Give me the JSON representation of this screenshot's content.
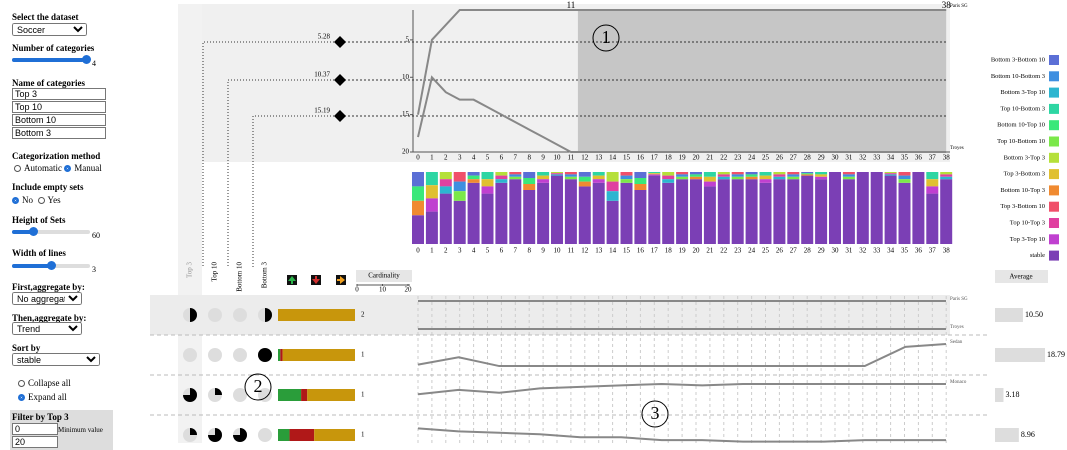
{
  "sidebar": {
    "dataset_label": "Select the dataset",
    "dataset": "Soccer",
    "categories_count_label": "Number of categories",
    "categories_count": 4,
    "names_label": "Name of categories",
    "names": [
      "Top 3",
      "Top 10",
      "Bottom 10",
      "Bottom 3"
    ],
    "method_label": "Categorization method",
    "method_options": [
      "Automatic",
      "Manual"
    ],
    "empty_label": "Include empty sets",
    "empty_options": [
      "No",
      "Yes"
    ],
    "height_label": "Height of Sets",
    "height": 60,
    "width_label": "Width of lines",
    "width": 3,
    "first_agg_label": "First,aggregate by:",
    "first_agg": "No aggregate",
    "then_agg_label": "Then,aggregate by:",
    "then_agg": "Trend",
    "sort_label": "Sort by",
    "sort": "stable",
    "expand_options": [
      "Collapse all",
      "Expand all"
    ],
    "filter_label": "Filter by Top 3",
    "filter_min": 0,
    "filter_min_label": "Minimum value",
    "filter_max": 20
  },
  "rank_chart": {
    "xticks": [
      0,
      1,
      2,
      3,
      4,
      5,
      6,
      7,
      8,
      9,
      10,
      11,
      12,
      13,
      14,
      15,
      16,
      17,
      18,
      19,
      20,
      21,
      22,
      23,
      24,
      25,
      26,
      27,
      28,
      29,
      30,
      31,
      32,
      33,
      34,
      35,
      36,
      37,
      38
    ],
    "ylim": [
      1,
      20
    ],
    "yticks": [
      5,
      10,
      15,
      20
    ],
    "thresholds": [
      5.28,
      10.37,
      15.19
    ],
    "marker_labels": [
      11,
      38
    ],
    "series": [
      {
        "name": "Paris SG",
        "values": [
          15,
          5,
          3,
          1,
          1,
          1,
          1,
          1,
          1,
          1,
          1,
          1,
          1,
          1,
          1,
          1,
          1,
          1,
          1,
          1,
          1,
          1,
          1,
          1,
          1,
          1,
          1,
          1,
          1,
          1,
          1,
          1,
          1,
          1,
          1,
          1,
          1,
          1,
          1
        ]
      },
      {
        "name": "Troyes",
        "values": [
          18,
          10,
          12,
          13,
          13,
          14,
          15,
          16,
          17,
          18,
          19,
          20,
          20,
          20,
          20,
          20,
          20,
          20,
          20,
          20,
          20,
          20,
          20,
          20,
          20,
          20,
          20,
          20,
          20,
          20,
          20,
          20,
          20,
          20,
          20,
          20,
          20,
          20,
          20
        ]
      }
    ],
    "stable_share": [
      40,
      45,
      70,
      60,
      85,
      70,
      85,
      90,
      75,
      85,
      95,
      90,
      80,
      85,
      60,
      85,
      75,
      95,
      85,
      90,
      90,
      80,
      90,
      90,
      90,
      85,
      90,
      90,
      95,
      90,
      100,
      90,
      100,
      100,
      95,
      85,
      100,
      70,
      90
    ]
  },
  "legend": [
    {
      "label": "Bottom 3-Bottom 10",
      "color": "#5b6fd6"
    },
    {
      "label": "Bottom 10-Bottom 3",
      "color": "#3f8fe0"
    },
    {
      "label": "Bottom 3-Top 10",
      "color": "#2cb5d0"
    },
    {
      "label": "Top 10-Bottom 3",
      "color": "#2dd6a3"
    },
    {
      "label": "Bottom 10-Top 10",
      "color": "#3ae87a"
    },
    {
      "label": "Top 10-Bottom 10",
      "color": "#7be84a"
    },
    {
      "label": "Bottom 3-Top 3",
      "color": "#b5e03a"
    },
    {
      "label": "Top 3-Bottom 3",
      "color": "#e0c030"
    },
    {
      "label": "Bottom 10-Top 3",
      "color": "#f08a30"
    },
    {
      "label": "Top 3-Bottom 10",
      "color": "#f0506a"
    },
    {
      "label": "Top 10-Top 3",
      "color": "#e040a0"
    },
    {
      "label": "Top 3-Top 10",
      "color": "#c040d0"
    },
    {
      "label": "stable",
      "color": "#7b3fb5"
    }
  ],
  "sets_table": {
    "cardinality_label": "Cardinality",
    "cardinality_ticks": [
      0,
      10,
      20
    ],
    "average_label": "Average",
    "columns": [
      "Top 3",
      "Top 10",
      "Bottom 10",
      "Bottom 3"
    ],
    "rows": [
      {
        "membership": [
          0.5,
          0,
          0,
          0.5
        ],
        "composition": [
          {
            "color": "#c8960c",
            "share": 100
          }
        ],
        "count": 2,
        "lines": [
          {
            "name": "Paris SG",
            "values": [
              1,
              1
            ]
          },
          {
            "name": "Troyes",
            "values": [
              20,
              20
            ]
          }
        ],
        "average": {
          "value": 10.5,
          "label": "10.50"
        }
      },
      {
        "membership": [
          0,
          0,
          0,
          1
        ],
        "composition": [
          {
            "color": "#2a9d3a",
            "share": 3
          },
          {
            "color": "#b01818",
            "share": 3
          },
          {
            "color": "#c8960c",
            "share": 94
          }
        ],
        "count": 1,
        "lines": [
          {
            "name": "Sedan",
            "values": [
              17,
              12,
              18,
              18,
              18,
              18,
              18,
              18,
              18,
              18,
              18,
              18,
              5,
              3
            ]
          }
        ],
        "average": {
          "value": 18.79,
          "label": "18.79"
        }
      },
      {
        "membership": [
          0.75,
          0.25,
          0,
          0
        ],
        "composition": [
          {
            "color": "#2a9d3a",
            "share": 30
          },
          {
            "color": "#b01818",
            "share": 8
          },
          {
            "color": "#c8960c",
            "share": 62
          }
        ],
        "count": 1,
        "lines": [
          {
            "name": "Monaco",
            "values": [
              10,
              7,
              9,
              6,
              5,
              4,
              3,
              4,
              3,
              3,
              3,
              3,
              3,
              3
            ]
          }
        ],
        "average": {
          "value": 3.18,
          "label": "3.18"
        }
      },
      {
        "membership": [
          0.25,
          0.75,
          0.75,
          0
        ],
        "composition": [
          {
            "color": "#2a9d3a",
            "share": 15
          },
          {
            "color": "#b01818",
            "share": 32
          },
          {
            "color": "#c8960c",
            "share": 53
          }
        ],
        "count": 1,
        "lines": [
          {
            "values": [
              6,
              8,
              9,
              10,
              12,
              12,
              14,
              14,
              15,
              15,
              15,
              14,
              14,
              14
            ]
          }
        ],
        "average": {
          "value": 8.96,
          "label": "8.96"
        }
      }
    ]
  },
  "annotations": [
    "1",
    "2",
    "3"
  ]
}
